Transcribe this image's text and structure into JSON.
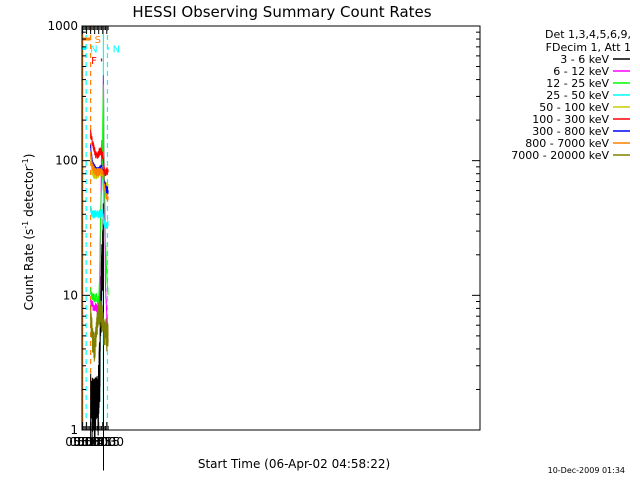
{
  "chart_data": {
    "type": "line",
    "title": "HESSI Observing Summary Count Rates",
    "xlabel": "Start Time (06-Apr-02 04:58:22)",
    "ylabel_parts": [
      "Count Rate (s",
      "-1",
      " detector",
      "-1",
      ")"
    ],
    "yscale": "log",
    "ylim": [
      1,
      1000
    ],
    "xlim": [
      298,
      1776
    ],
    "x_unit": "minutes after 00:00",
    "y_ticks": [
      1,
      10,
      100,
      1000
    ],
    "y_tick_labels": [
      "1",
      "10",
      "100",
      "1000"
    ],
    "x_ticks": [
      300,
      315,
      330,
      345,
      360,
      375,
      390
    ],
    "x_tick_labels": [
      "05:00",
      "05:15",
      "05:30",
      "05:45",
      "06:00",
      "06:15",
      "06:30"
    ],
    "legend_header": [
      "Det 1,3,4,5,6,9,",
      "FDecim 1, Att 1"
    ],
    "legend_position": "right, outside plot",
    "grid": false,
    "series": [
      {
        "name": "3 - 6 keV",
        "color": "#000000",
        "x": [
          330,
          340,
          350,
          358,
          361,
          364,
          367,
          370,
          373,
          376,
          377.5,
          378
        ],
        "y": [
          1.8,
          1.6,
          1.7,
          1.7,
          2.3,
          3.5,
          7,
          13,
          18,
          28,
          35,
          0
        ]
      },
      {
        "name": "6 - 12 keV",
        "color": "#ff00ff",
        "x": [
          330,
          335,
          340,
          345,
          350,
          355,
          360,
          363,
          366,
          369,
          370,
          372,
          374,
          376,
          377.5,
          379,
          382,
          385,
          390,
          395
        ],
        "y": [
          8.5,
          8.8,
          8,
          8.2,
          8.2,
          8,
          7.5,
          9,
          20,
          55,
          100,
          140,
          75,
          110,
          450,
          130,
          38,
          12,
          7,
          5
        ]
      },
      {
        "name": "12 - 25 keV",
        "color": "#00ff00",
        "x": [
          330,
          335,
          340,
          345,
          350,
          355,
          360,
          362,
          364,
          366,
          368,
          370,
          372,
          374,
          376,
          377.5,
          379,
          382,
          385,
          390,
          395
        ],
        "y": [
          11,
          9.8,
          9.7,
          9.5,
          9.8,
          9.3,
          9.4,
          11,
          16,
          30,
          40,
          60,
          65,
          110,
          250,
          370,
          95,
          60,
          25,
          14,
          10
        ]
      },
      {
        "name": "25 - 50 keV",
        "color": "#00ffff",
        "x": [
          330,
          335,
          340,
          345,
          350,
          355,
          360,
          365,
          370,
          373,
          375,
          377.5,
          379,
          382,
          386,
          390,
          395
        ],
        "y": [
          44,
          40,
          40,
          40,
          41,
          40,
          40,
          41,
          40,
          41,
          41,
          36,
          36,
          34,
          33,
          33,
          34
        ]
      },
      {
        "name": "50 - 100 keV",
        "color": "#cccc00",
        "x": [
          330,
          335,
          340,
          345,
          350,
          355,
          360,
          365,
          370,
          373,
          376,
          378,
          380,
          384,
          388,
          392,
          395
        ],
        "y": [
          100,
          85,
          80,
          78,
          78,
          79,
          80,
          82,
          83,
          82,
          80,
          78,
          68,
          66,
          65,
          65,
          66
        ]
      },
      {
        "name": "100 - 300 keV",
        "color": "#ff0000",
        "x": [
          330,
          335,
          340,
          345,
          350,
          355,
          360,
          365,
          370,
          373,
          376,
          378,
          380,
          384,
          388,
          392,
          395
        ],
        "y": [
          160,
          140,
          130,
          118,
          110,
          108,
          114,
          118,
          116,
          112,
          105,
          95,
          86,
          82,
          82,
          84,
          82
        ]
      },
      {
        "name": "300 - 800 keV",
        "color": "#0000ff",
        "x": [
          330,
          335,
          340,
          345,
          350,
          355,
          360,
          365,
          370,
          373,
          376,
          378,
          380,
          384,
          388,
          392,
          395
        ],
        "y": [
          125,
          102,
          92,
          88,
          84,
          84,
          85,
          88,
          88,
          85,
          82,
          78,
          68,
          66,
          62,
          60,
          58
        ]
      },
      {
        "name": "800 - 7000 keV",
        "color": "#ff8000",
        "x": [
          330,
          335,
          340,
          345,
          350,
          355,
          360,
          365,
          370,
          373,
          376,
          378,
          380,
          384,
          388,
          392,
          395
        ],
        "y": [
          112,
          94,
          87,
          84,
          82,
          82,
          83,
          85,
          86,
          83,
          80,
          78,
          64,
          60,
          55,
          53,
          52
        ]
      },
      {
        "name": "7000 - 20000 keV",
        "color": "#808000",
        "x": [
          330,
          332,
          335,
          338,
          340,
          343,
          345,
          348,
          350,
          352,
          355,
          358,
          360,
          363,
          365,
          368,
          370,
          373,
          375,
          378,
          380,
          383,
          385,
          388,
          390,
          393,
          395
        ],
        "y": [
          8,
          6.5,
          5.5,
          4.5,
          4.3,
          4.3,
          4.3,
          4.7,
          5.3,
          5.8,
          6.1,
          7.0,
          7.3,
          7.2,
          7.0,
          7.6,
          7.5,
          7.2,
          6.6,
          5.6,
          5.3,
          5.2,
          5.4,
          5.5,
          5.0,
          5.7,
          4.4
        ]
      }
    ],
    "flags": [
      {
        "label": "S",
        "color": "#ff8000",
        "x_start": 298,
        "x_end": 330,
        "y": 800
      },
      {
        "label": "N",
        "color": "#00ffff",
        "x_start": 298,
        "x_end": 313.5,
        "y": 680
      },
      {
        "label": "N",
        "color": "#00ffff",
        "x_start": 392.5,
        "x_end": 397,
        "y": 680
      },
      {
        "label": "F",
        "color": "#ff0000",
        "x_start": 368,
        "x_end": 373,
        "y": 560
      }
    ],
    "vlines": [
      {
        "x": 299.5,
        "color": "#00ffff",
        "dashed": false
      },
      {
        "x": 300.5,
        "color": "#ff8000",
        "dashed": false
      },
      {
        "x": 313.5,
        "color": "#00ffff",
        "dashed": true
      },
      {
        "x": 330,
        "color": "#ff8000",
        "dashed": true
      },
      {
        "x": 377.5,
        "color": "#00ffff",
        "dashed": false
      },
      {
        "x": 392.5,
        "color": "#00ffff",
        "dashed": true
      }
    ],
    "timestamp": "10-Dec-2009 01:34"
  }
}
